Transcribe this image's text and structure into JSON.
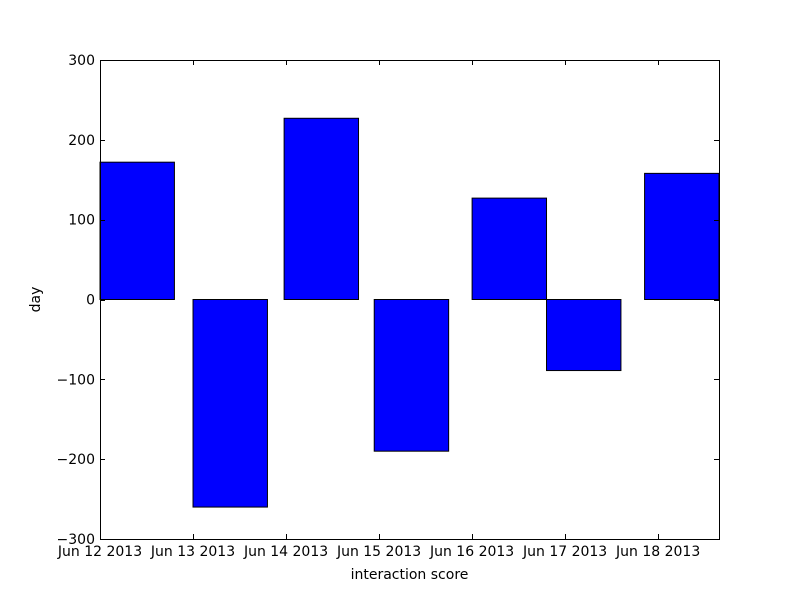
{
  "chart_data": {
    "type": "bar",
    "title": "",
    "xlabel": "interaction score",
    "ylabel": "day",
    "categories": [
      "Jun 12 2013",
      "Jun 13 2013",
      "Jun 14 2013",
      "Jun 15 2013",
      "Jun 16 2013",
      "Jun 17 2013",
      "Jun 18 2013"
    ],
    "x_dates": [
      "2013-06-12",
      "2013-06-13",
      "2013-06-14",
      "2013-06-15",
      "2013-06-16",
      "2013-06-17",
      "2013-06-18"
    ],
    "bars": [
      {
        "start": "2013-06-12 00:00",
        "end": "2013-06-12 19:12",
        "value": 172
      },
      {
        "start": "2013-06-13 00:00",
        "end": "2013-06-13 19:12",
        "value": -260
      },
      {
        "start": "2013-06-13 23:30",
        "end": "2013-06-14 18:42",
        "value": 227
      },
      {
        "start": "2013-06-14 22:45",
        "end": "2013-06-15 17:57",
        "value": -190
      },
      {
        "start": "2013-06-16 00:00",
        "end": "2013-06-16 19:12",
        "value": 127
      },
      {
        "start": "2013-06-16 19:12",
        "end": "2013-06-17 14:24",
        "value": -89
      },
      {
        "start": "2013-06-17 20:30",
        "end": "2013-06-18 15:42",
        "value": 158
      }
    ],
    "xlim": [
      "2013-06-12 00:00",
      "2013-06-18 15:42"
    ],
    "ylim": [
      -300,
      300
    ],
    "yticks": [
      -300,
      -200,
      -100,
      0,
      100,
      200,
      300
    ],
    "ytick_labels": [
      "−300",
      "−200",
      "−100",
      "0",
      "100",
      "200",
      "300"
    ],
    "grid": false,
    "legend": "none",
    "colors": {
      "bar_fill": "#0000ff",
      "bar_edge": "#000000",
      "axes_edge": "#000000",
      "background": "#ffffff"
    }
  }
}
